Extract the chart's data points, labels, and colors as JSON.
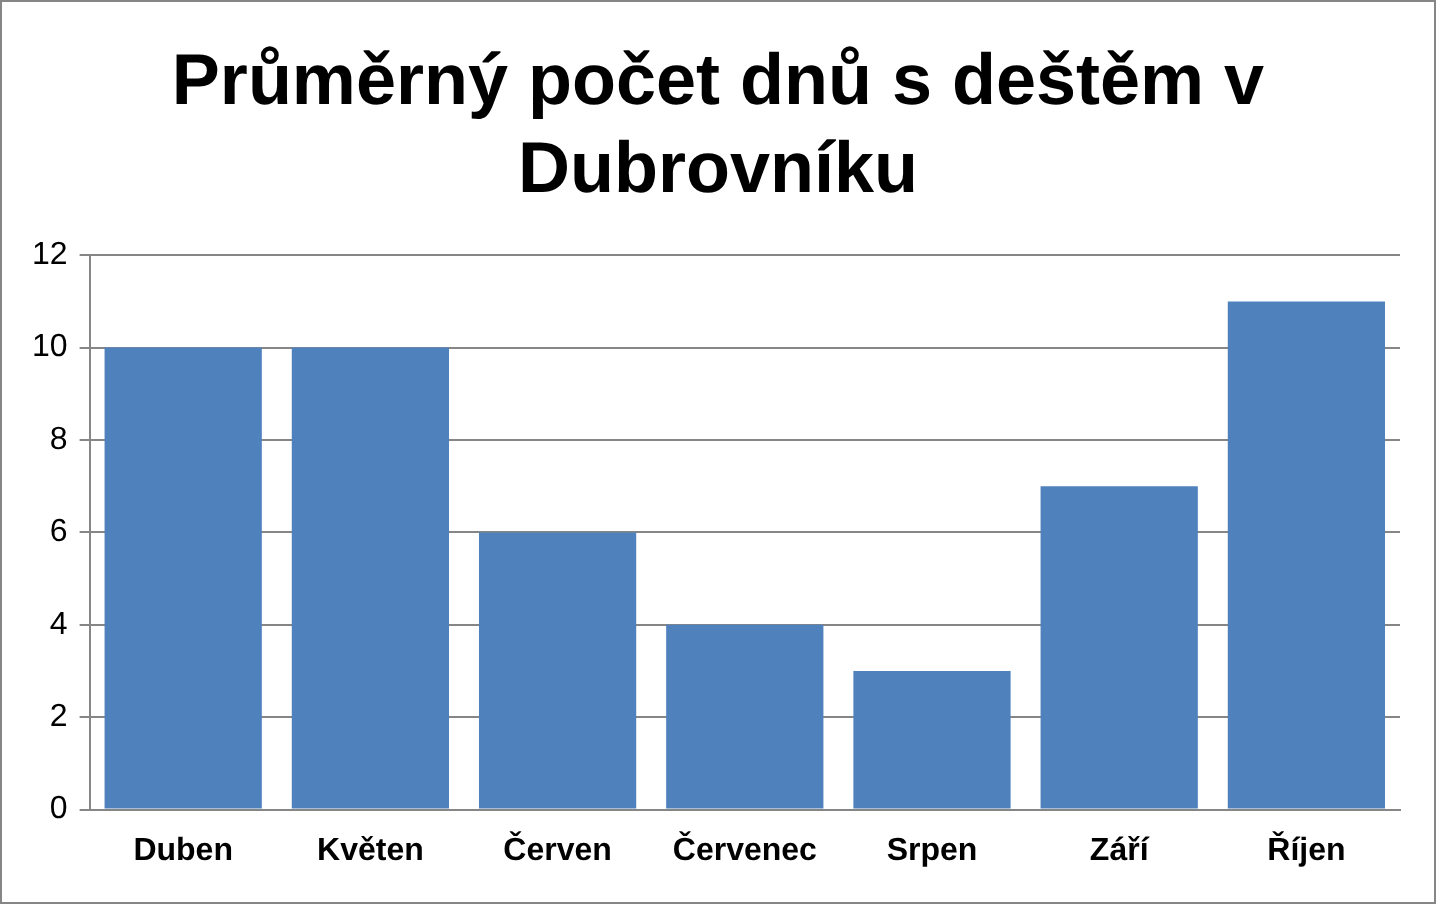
{
  "chart_data": {
    "type": "bar",
    "title": "Průměrný počet dnů s deštěm v Dubrovníku",
    "categories": [
      "Duben",
      "Květen",
      "Červen",
      "Červenec",
      "Srpen",
      "Září",
      "Říjen"
    ],
    "values": [
      10,
      10,
      6,
      4,
      3,
      7,
      11
    ],
    "color": "#4f81bd",
    "ylim": [
      0,
      12
    ],
    "yticks": [
      0,
      2,
      4,
      6,
      8,
      10,
      12
    ],
    "grid": "y",
    "legend": false
  }
}
